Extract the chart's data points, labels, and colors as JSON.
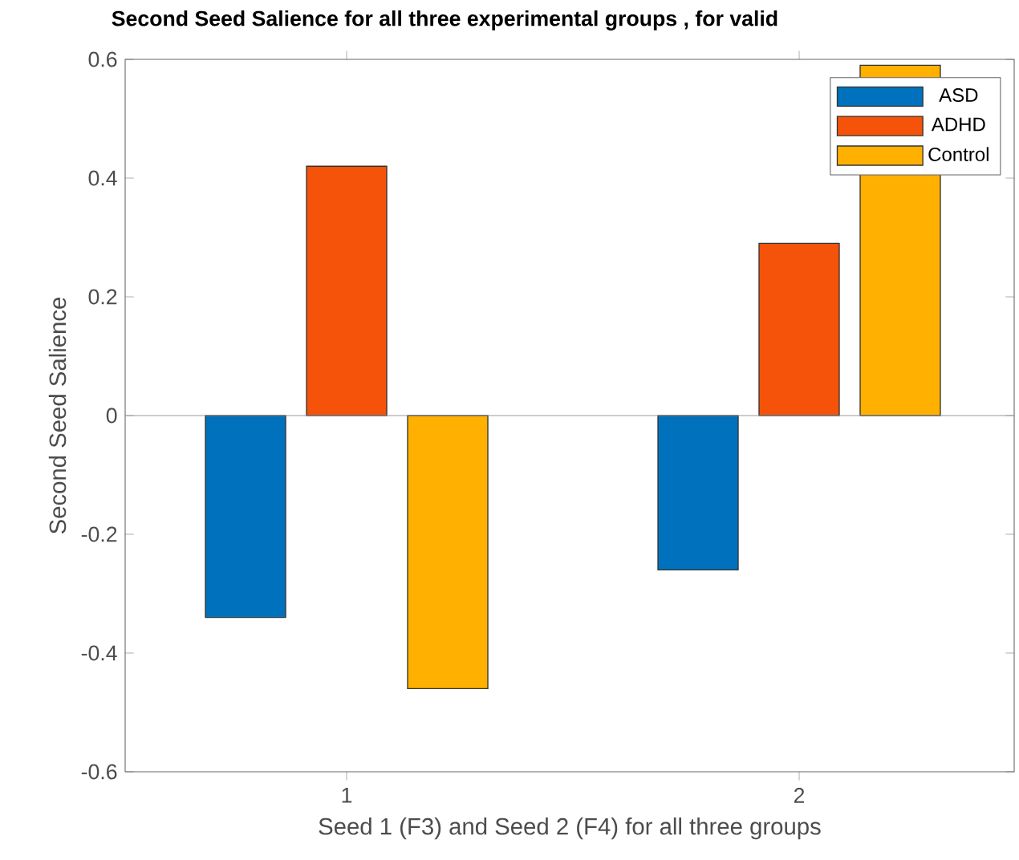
{
  "chart_data": {
    "type": "bar",
    "title": "Second Seed Salience for all three experimental groups , for valid",
    "xlabel": "Seed 1 (F3) and Seed 2 (F4) for all three groups",
    "ylabel": "Second Seed Salience",
    "categories": [
      "1",
      "2"
    ],
    "series": [
      {
        "name": "ASD",
        "color": "#0072bd",
        "values": [
          -0.34,
          -0.26
        ]
      },
      {
        "name": "ADHD",
        "color": "#f5520a",
        "values": [
          0.42,
          0.29
        ]
      },
      {
        "name": "Control",
        "color": "#ffb000",
        "values": [
          -0.46,
          0.59
        ]
      }
    ],
    "ylim": [
      -0.6,
      0.6
    ],
    "yticks": [
      -0.6,
      -0.4,
      -0.2,
      0,
      0.2,
      0.4,
      0.6
    ],
    "grid": false,
    "ref_lines": [
      {
        "axis": "y",
        "value": 0,
        "color": "#999999"
      }
    ],
    "legend": "top right"
  }
}
